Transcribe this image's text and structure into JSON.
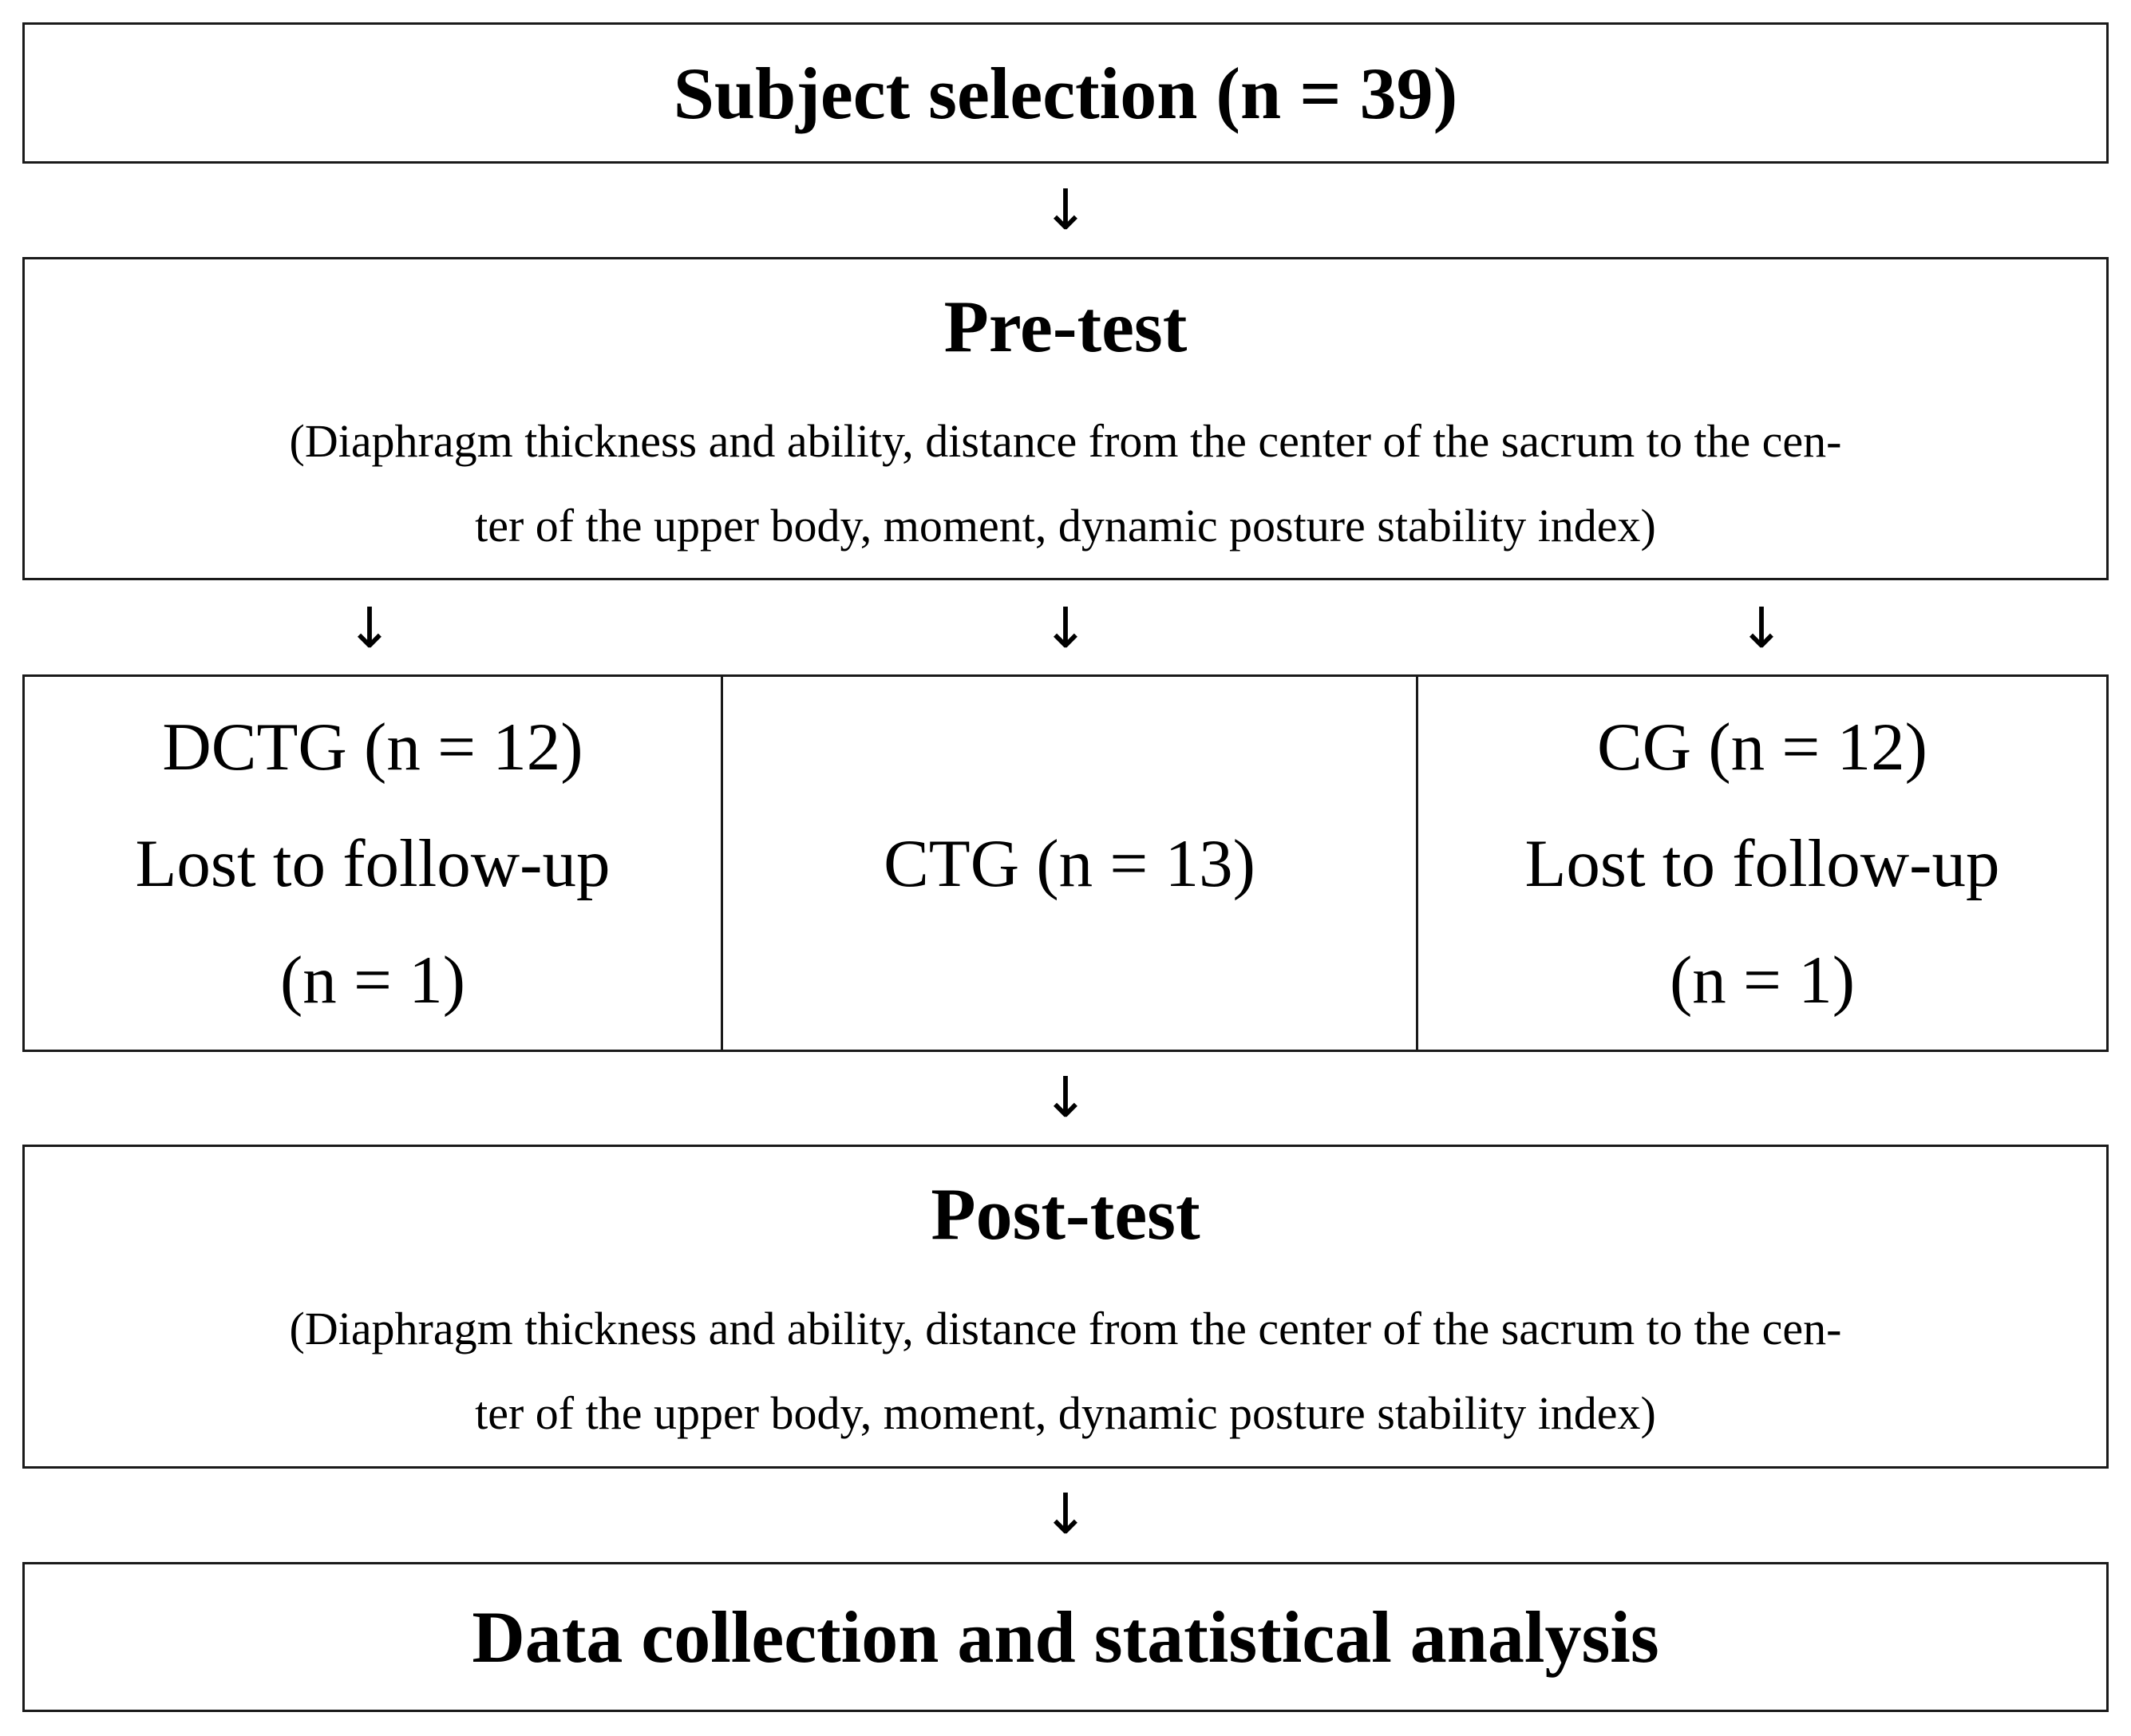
{
  "steps": {
    "selection": "Subject selection (n = 39)",
    "pretest": {
      "title": "Pre-test",
      "detail_line1": "(Diaphragm thickness and ability, distance from the center of the sacrum to the cen-",
      "detail_line2": "ter of the upper body, moment, dynamic posture stability index)"
    },
    "groups": {
      "dctg": {
        "line1": "DCTG (n = 12)",
        "line2": "Lost to follow-up",
        "line3": "(n = 1)"
      },
      "ctg": {
        "line1": "CTG (n = 13)"
      },
      "cg": {
        "line1": "CG (n = 12)",
        "line2": "Lost to follow-up",
        "line3": "(n = 1)"
      }
    },
    "posttest": {
      "title": "Post-test",
      "detail_line1": "(Diaphragm thickness and ability, distance from the center of the sacrum to the cen-",
      "detail_line2": "ter of the upper body, moment, dynamic posture stability index)"
    },
    "analysis": "Data collection and statistical analysis"
  },
  "arrow_glyph": "↓"
}
